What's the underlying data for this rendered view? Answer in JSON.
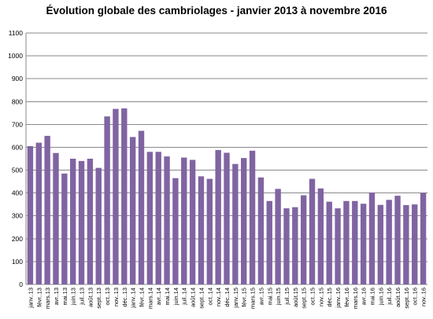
{
  "chart_data": {
    "type": "bar",
    "title": "Évolution globale des cambriolages - janvier 2013 à novembre 2016",
    "xlabel": "",
    "ylabel": "",
    "ylim": [
      0,
      1100
    ],
    "yticks": [
      0,
      100,
      200,
      300,
      400,
      500,
      600,
      700,
      800,
      900,
      1000,
      1100
    ],
    "grid": true,
    "legend": "none",
    "bar_color": "#8064A2",
    "categories": [
      "janv..13",
      "févr..13",
      "mars.13",
      "avr..13",
      "mai.13",
      "juin.13",
      "juil..13",
      "août.13",
      "sept..13",
      "oct..13",
      "nov..13",
      "déc..13",
      "janv..14",
      "févr..14",
      "mars.14",
      "avr..14",
      "mai.14",
      "juin.14",
      "juil..14",
      "août.14",
      "sept..14",
      "oct..14",
      "nov..14",
      "déc..14",
      "janv..15",
      "févr..15",
      "mars.15",
      "avr..15",
      "mai.15",
      "juin.15",
      "juil..15",
      "août.15",
      "sept..15",
      "oct..15",
      "nov..15",
      "déc..15",
      "janv..16",
      "févr..16",
      "mars.16",
      "avr..16",
      "mai.16",
      "juin.16",
      "juil..16",
      "août.16",
      "sept..16",
      "oct..16",
      "nov..16"
    ],
    "values": [
      605,
      620,
      650,
      575,
      485,
      550,
      540,
      550,
      510,
      735,
      768,
      770,
      645,
      672,
      580,
      580,
      560,
      465,
      555,
      545,
      473,
      462,
      588,
      576,
      527,
      553,
      585,
      468,
      365,
      418,
      333,
      338,
      390,
      462,
      420,
      362,
      333,
      365,
      365,
      353,
      402,
      348,
      370,
      388,
      347,
      350,
      400
    ]
  }
}
